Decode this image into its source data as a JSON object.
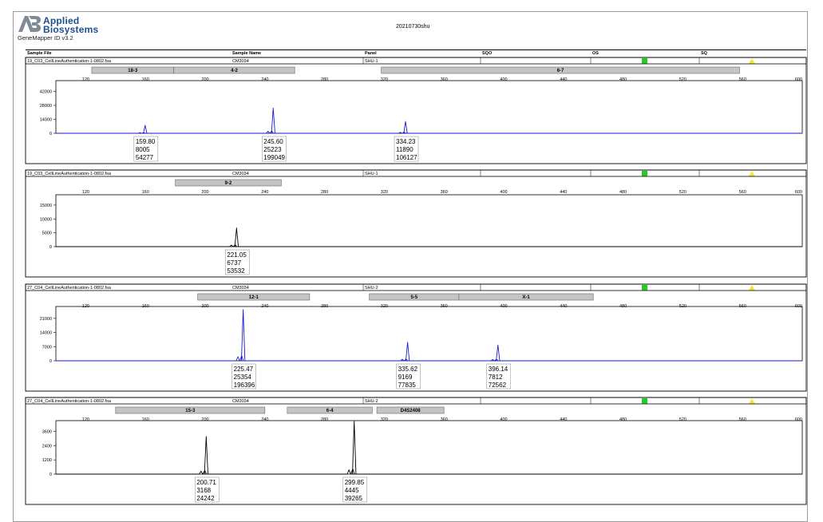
{
  "header": {
    "brand_line1": "Applied",
    "brand_line2": "Biosystems",
    "software": "GeneMapper ID v3.2",
    "title": "20210730shu"
  },
  "columns": [
    "Sample File",
    "Sample Name",
    "Panel",
    "SQO",
    "OS",
    "SQ"
  ],
  "colors": {
    "status_ok": "#22cc22",
    "status_warn": "#f2e633",
    "blue_dye": "#1a1ad6",
    "black_dye": "#000000",
    "bin_fill": "#c4c4c4"
  },
  "chart_data": [
    {
      "type": "line",
      "sample_file": "19_C03_CellLineAuthentication-1-0802.fsa",
      "sample_name": "CM3034",
      "panel": "SHU-1",
      "dye_color": "#1a1ad6",
      "xlim": [
        100,
        600
      ],
      "x_ticks": [
        120,
        160,
        200,
        240,
        280,
        320,
        360,
        400,
        440,
        480,
        520,
        560,
        600
      ],
      "ylim": [
        0,
        48000
      ],
      "y_ticks": [
        0,
        14000,
        28000,
        42000
      ],
      "markers": [
        {
          "label": "18-3",
          "start": 124,
          "end": 179
        },
        {
          "label": "4-2",
          "start": 179,
          "end": 260
        },
        {
          "label": "6-7",
          "start": 318,
          "end": 558
        }
      ],
      "peaks": [
        {
          "size": "159.80",
          "height": "8005",
          "area": "54277",
          "x": 159.8,
          "y": 8005
        },
        {
          "size": "245.60",
          "height": "25223",
          "area": "199049",
          "x": 245.6,
          "y": 25223
        },
        {
          "size": "334.23",
          "height": "11890",
          "area": "106127",
          "x": 334.23,
          "y": 11890
        }
      ]
    },
    {
      "type": "line",
      "sample_file": "19_C03_CellLineAuthentication-1-0802.fsa",
      "sample_name": "CM3034",
      "panel": "SHU-1",
      "dye_color": "#000000",
      "xlim": [
        100,
        600
      ],
      "x_ticks": [
        120,
        160,
        200,
        240,
        280,
        320,
        360,
        400,
        440,
        480,
        520,
        560,
        600
      ],
      "ylim": [
        0,
        17000
      ],
      "y_ticks": [
        0,
        5000,
        10000,
        15000
      ],
      "markers": [
        {
          "label": "9-2",
          "start": 180,
          "end": 251
        }
      ],
      "peaks": [
        {
          "size": "221.05",
          "height": "6737",
          "area": "53532",
          "x": 221.05,
          "y": 6737
        }
      ]
    },
    {
      "type": "line",
      "sample_file": "27_C04_CellLineAuthentication-1-0802.fsa",
      "sample_name": "CM3034",
      "panel": "SHU-2",
      "dye_color": "#1a1ad6",
      "xlim": [
        100,
        600
      ],
      "x_ticks": [
        120,
        160,
        200,
        240,
        280,
        320,
        360,
        400,
        440,
        480,
        520,
        560,
        600
      ],
      "ylim": [
        0,
        24500
      ],
      "y_ticks": [
        0,
        7000,
        14000,
        21000
      ],
      "markers": [
        {
          "label": "12-1",
          "start": 195,
          "end": 270
        },
        {
          "label": "5-5",
          "start": 310,
          "end": 370
        },
        {
          "label": "X-1",
          "start": 370,
          "end": 460
        }
      ],
      "peaks": [
        {
          "size": "225.47",
          "height": "25354",
          "area": "196396",
          "x": 225.47,
          "y": 25354
        },
        {
          "size": "335.62",
          "height": "9169",
          "area": "77835",
          "x": 335.62,
          "y": 9169
        },
        {
          "size": "396.14",
          "height": "7812",
          "area": "72562",
          "x": 396.14,
          "y": 7812
        }
      ]
    },
    {
      "type": "line",
      "sample_file": "27_C04_CellLineAuthentication-1-0802.fsa",
      "sample_name": "CM3034",
      "panel": "SHU-2",
      "dye_color": "#000000",
      "xlim": [
        100,
        600
      ],
      "x_ticks": [
        120,
        160,
        200,
        240,
        280,
        320,
        360,
        400,
        440,
        480,
        520,
        560,
        600
      ],
      "ylim": [
        0,
        4100
      ],
      "y_ticks": [
        0,
        1200,
        2400,
        3600
      ],
      "markers": [
        {
          "label": "15-3",
          "start": 140,
          "end": 240
        },
        {
          "label": "6-4",
          "start": 255,
          "end": 312
        },
        {
          "label": "D4S2408",
          "start": 315,
          "end": 360
        }
      ],
      "peaks": [
        {
          "size": "200.71",
          "height": "3168",
          "area": "24242",
          "x": 200.71,
          "y": 3168
        },
        {
          "size": "299.85",
          "height": "4445",
          "area": "39265",
          "x": 299.85,
          "y": 4445
        }
      ]
    }
  ]
}
